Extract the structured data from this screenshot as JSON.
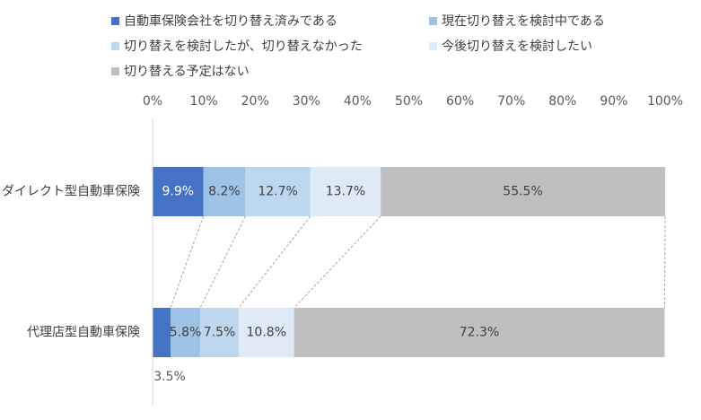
{
  "chart_data": {
    "type": "bar",
    "orientation": "horizontal",
    "stacked": "percent",
    "categories": [
      "ダイレクト型自動車保険",
      "代理店型自動車保険"
    ],
    "series": [
      {
        "name": "自動車保険会社を切り替え済みである",
        "values": [
          9.9,
          3.5
        ],
        "labels": [
          "9.9%",
          "3.5%"
        ],
        "color": "#4472c4"
      },
      {
        "name": "現在切り替えを検討中である",
        "values": [
          8.2,
          5.8
        ],
        "labels": [
          "8.2%",
          "5.8%"
        ],
        "color": "#9dc3e6"
      },
      {
        "name": "切り替えを検討したが、切り替えなかった",
        "values": [
          12.7,
          7.5
        ],
        "labels": [
          "12.7%",
          "7.5%"
        ],
        "color": "#bdd7ee"
      },
      {
        "name": "今後切り替えを検討したい",
        "values": [
          13.7,
          10.8
        ],
        "labels": [
          "13.7%",
          "10.8%"
        ],
        "color": "#deebf7"
      },
      {
        "name": "切り替える予定はない",
        "values": [
          55.5,
          72.3
        ],
        "labels": [
          "55.5%",
          "72.3%"
        ],
        "color": "#bfbfbf"
      }
    ],
    "xaxis": {
      "ticks": [
        "0%",
        "10%",
        "20%",
        "30%",
        "40%",
        "50%",
        "60%",
        "70%",
        "80%",
        "90%",
        "100%"
      ],
      "range": [
        0,
        100
      ],
      "position": "top"
    },
    "legend_position": "top",
    "series_lines": true,
    "grid": false
  }
}
